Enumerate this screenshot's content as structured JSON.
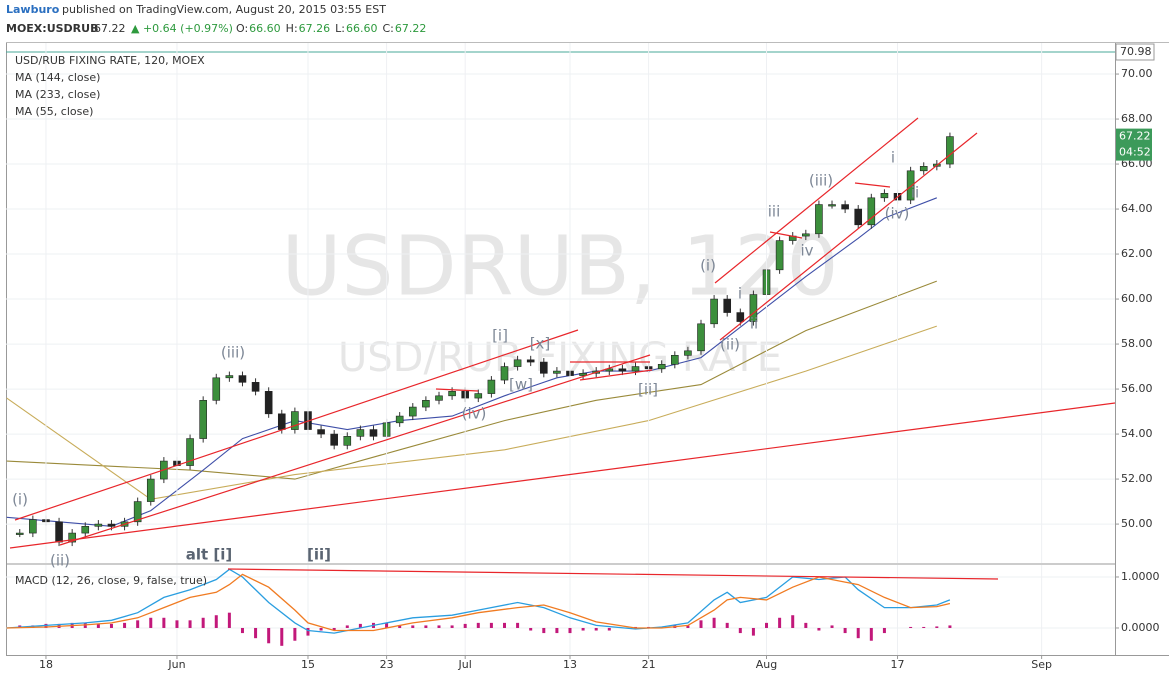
{
  "header": {
    "author": "Lawburo",
    "published": "published on TradingView.com, August 20, 2015 03:55 EST",
    "symbol": "MOEX:USDRUB",
    "last": "67.22",
    "change": "▲ +0.64 (+0.97%)",
    "ohlc": [
      {
        "label": "O:",
        "value": "66.60"
      },
      {
        "label": "H:",
        "value": "67.26"
      },
      {
        "label": "L:",
        "value": "66.60"
      },
      {
        "label": "C:",
        "value": "67.22"
      }
    ]
  },
  "annotations": [
    "(i)",
    "(ii)",
    "(iii)",
    "[i]",
    "[x]",
    "[w]",
    "(iv)",
    "[ii]",
    "(i)",
    "(ii)",
    "i",
    "ii",
    "iii",
    "iv",
    "(iii)",
    "i",
    "ii",
    "(iv)",
    "alt [i]",
    "[ii]"
  ],
  "chart_data": [
    {
      "type": "candlestick",
      "title": "USD/RUB FIXING RATE, 120, MOEX",
      "watermark": "USDRUB, 120",
      "watermark_subtitle": "USD/RUB FIXING RATE",
      "up_color": "#3c8f3c",
      "down_color": "#222222",
      "x": [
        -2,
        -1,
        0,
        1,
        2,
        3,
        4,
        5,
        6,
        7,
        8,
        9,
        10,
        11,
        12,
        13,
        14,
        15,
        16,
        17,
        18,
        19,
        20,
        21,
        22,
        23,
        24,
        25,
        26,
        27,
        28,
        29,
        30,
        31,
        32,
        33,
        34,
        35,
        36,
        37,
        38,
        39,
        40,
        41,
        42,
        43,
        44,
        45,
        46,
        47,
        48,
        49,
        50,
        51,
        52,
        53,
        54,
        55,
        56,
        57,
        58,
        59,
        60,
        61,
        62,
        63,
        64,
        65,
        66,
        67,
        68,
        69
      ],
      "values": [
        49.6,
        50.2,
        50.1,
        49.2,
        49.6,
        49.9,
        50.0,
        49.9,
        50.1,
        51.0,
        52.0,
        52.8,
        52.6,
        53.8,
        55.5,
        56.5,
        56.6,
        56.3,
        55.9,
        54.9,
        54.2,
        55.0,
        54.2,
        54.0,
        53.5,
        53.9,
        54.2,
        53.9,
        54.5,
        54.8,
        55.2,
        55.5,
        55.7,
        55.9,
        55.6,
        55.8,
        56.4,
        57.0,
        57.3,
        57.2,
        56.7,
        56.8,
        56.6,
        56.7,
        56.8,
        56.9,
        56.8,
        57.0,
        56.9,
        57.1,
        57.5,
        57.7,
        58.9,
        60.0,
        59.4,
        59.0,
        60.2,
        61.3,
        62.6,
        62.8,
        62.9,
        64.2,
        64.2,
        64.0,
        63.3,
        64.5,
        64.7,
        64.4,
        65.7,
        65.9,
        66.0,
        67.22
      ],
      "series": [
        {
          "name": "MA (144, close)",
          "color": "#9a8a3a",
          "x": [
            -3,
            11,
            19,
            27,
            35,
            42,
            50,
            58,
            68
          ],
          "values": [
            52.8,
            52.4,
            52.0,
            53.3,
            54.6,
            55.5,
            56.2,
            58.6,
            60.8
          ]
        },
        {
          "name": "MA (233, close)",
          "color": "#c8ac5a",
          "x": [
            -3,
            8,
            19,
            35,
            46,
            58,
            68
          ],
          "values": [
            55.6,
            51.1,
            52.2,
            53.3,
            54.6,
            56.8,
            58.8
          ]
        },
        {
          "name": "MA (55, close)",
          "color": "#3f4fa8",
          "x": [
            -3,
            1,
            5,
            8,
            12,
            15,
            19,
            23,
            27,
            31,
            35,
            39,
            42,
            46,
            50,
            54,
            58,
            62,
            64,
            68
          ],
          "values": [
            50.3,
            50.1,
            49.9,
            50.6,
            52.4,
            53.8,
            54.6,
            54.2,
            54.6,
            54.8,
            55.7,
            56.5,
            56.8,
            56.8,
            57.4,
            59.2,
            61.0,
            62.7,
            63.6,
            64.5
          ]
        }
      ],
      "reference_line": {
        "value": 70.98,
        "label": "70.98",
        "color": "#4aa89a"
      },
      "last_label": "67.22",
      "countdown": "04:52",
      "last_color": "#3c9a5a",
      "xlim": [
        -3.05,
        81.6
      ],
      "ylim": [
        48.27,
        71.38
      ],
      "yticks": [
        {
          "value": 50,
          "label": "50.00"
        },
        {
          "value": 52,
          "label": "52.00"
        },
        {
          "value": 54,
          "label": "54.00"
        },
        {
          "value": 56,
          "label": "56.00"
        },
        {
          "value": 58,
          "label": "58.00"
        },
        {
          "value": 60,
          "label": "60.00"
        },
        {
          "value": 62,
          "label": "62.00"
        },
        {
          "value": 64,
          "label": "64.00"
        },
        {
          "value": 66,
          "label": "66.00"
        },
        {
          "value": 68,
          "label": "68.00"
        },
        {
          "value": 70,
          "label": "70.00"
        }
      ],
      "grid": true
    },
    {
      "type": "macd",
      "title": "MACD (12, 26, close, 9, false, true)",
      "series": [
        {
          "color": "#2a9ee0",
          "x": [
            -3,
            0,
            3,
            5,
            7,
            9,
            11,
            13,
            14,
            15,
            17,
            19,
            20,
            22,
            25,
            28,
            31,
            33,
            36,
            38,
            40,
            42,
            45,
            47,
            49,
            51,
            52,
            53,
            55,
            57,
            59,
            61,
            62,
            64,
            66,
            68,
            69
          ],
          "values": [
            0.0,
            0.05,
            0.1,
            0.15,
            0.3,
            0.6,
            0.75,
            0.95,
            1.15,
            1.0,
            0.5,
            0.1,
            -0.05,
            -0.1,
            0.05,
            0.2,
            0.25,
            0.35,
            0.5,
            0.4,
            0.2,
            0.05,
            -0.02,
            0.02,
            0.1,
            0.55,
            0.7,
            0.5,
            0.6,
            1.0,
            0.95,
            1.0,
            0.75,
            0.4,
            0.4,
            0.45,
            0.55
          ]
        },
        {
          "color": "#f07b22",
          "x": [
            -3,
            0,
            3,
            5,
            7,
            9,
            11,
            13,
            14,
            15,
            17,
            19,
            20,
            22,
            25,
            28,
            31,
            33,
            36,
            38,
            40,
            42,
            45,
            47,
            49,
            51,
            52,
            53,
            55,
            57,
            59,
            61,
            62,
            64,
            66,
            68,
            69
          ],
          "values": [
            0.0,
            0.02,
            0.06,
            0.1,
            0.2,
            0.4,
            0.6,
            0.7,
            0.85,
            1.05,
            0.8,
            0.35,
            0.1,
            -0.05,
            -0.05,
            0.1,
            0.2,
            0.3,
            0.4,
            0.45,
            0.3,
            0.12,
            0.0,
            0.0,
            0.05,
            0.35,
            0.55,
            0.6,
            0.55,
            0.8,
            1.0,
            0.9,
            0.85,
            0.6,
            0.4,
            0.42,
            0.48
          ]
        }
      ],
      "histogram": {
        "color": "#c2187a",
        "values": [
          0.05,
          0.05,
          0.08,
          0.08,
          0.1,
          0.1,
          0.08,
          0.08,
          0.1,
          0.15,
          0.2,
          0.2,
          0.15,
          0.15,
          0.2,
          0.25,
          0.3,
          -0.1,
          -0.2,
          -0.3,
          -0.35,
          -0.25,
          -0.15,
          -0.05,
          -0.05,
          0.05,
          0.08,
          0.1,
          0.1,
          0.05,
          0.05,
          0.05,
          0.05,
          0.05,
          0.08,
          0.1,
          0.1,
          0.1,
          0.1,
          -0.05,
          -0.1,
          -0.1,
          -0.1,
          -0.05,
          -0.05,
          -0.05,
          0.0,
          0.02,
          0.02,
          0.02,
          0.05,
          0.05,
          0.15,
          0.2,
          0.1,
          -0.1,
          -0.15,
          0.1,
          0.2,
          0.25,
          0.1,
          -0.05,
          0.05,
          -0.1,
          -0.2,
          -0.25,
          -0.1,
          0.0,
          0.02,
          0.02,
          0.03,
          0.05
        ]
      },
      "xlim": [
        -3.05,
        81.6
      ],
      "ylim": [
        -0.53,
        1.235
      ],
      "yticks": [
        {
          "value": 0,
          "label": "0.0000"
        },
        {
          "value": 1,
          "label": "1.0000"
        }
      ],
      "xticks": [
        {
          "value": 0,
          "label": "18"
        },
        {
          "value": 10,
          "label": "Jun"
        },
        {
          "value": 20,
          "label": "15"
        },
        {
          "value": 26,
          "label": "23"
        },
        {
          "value": 32,
          "label": "Jul"
        },
        {
          "value": 40,
          "label": "13"
        },
        {
          "value": 46,
          "label": "21"
        },
        {
          "value": 55,
          "label": "Aug"
        },
        {
          "value": 65,
          "label": "17"
        },
        {
          "value": 76,
          "label": "Sep"
        }
      ],
      "grid": true
    }
  ]
}
